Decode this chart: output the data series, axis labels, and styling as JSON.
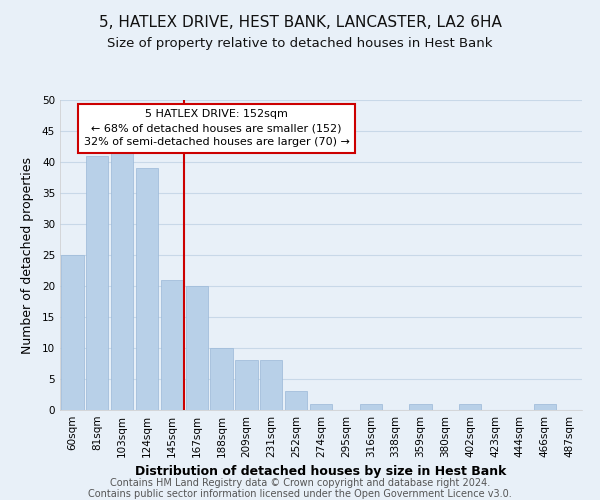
{
  "title": "5, HATLEX DRIVE, HEST BANK, LANCASTER, LA2 6HA",
  "subtitle": "Size of property relative to detached houses in Hest Bank",
  "xlabel": "Distribution of detached houses by size in Hest Bank",
  "ylabel": "Number of detached properties",
  "bar_labels": [
    "60sqm",
    "81sqm",
    "103sqm",
    "124sqm",
    "145sqm",
    "167sqm",
    "188sqm",
    "209sqm",
    "231sqm",
    "252sqm",
    "274sqm",
    "295sqm",
    "316sqm",
    "338sqm",
    "359sqm",
    "380sqm",
    "402sqm",
    "423sqm",
    "444sqm",
    "466sqm",
    "487sqm"
  ],
  "bar_values": [
    25,
    41,
    42,
    39,
    21,
    20,
    10,
    8,
    8,
    3,
    1,
    0,
    1,
    0,
    1,
    0,
    1,
    0,
    0,
    1,
    0
  ],
  "bar_color": "#b8d0e8",
  "bar_edge_color": "#9ab8d8",
  "vline_x_index": 4,
  "vline_color": "#cc0000",
  "annotation_line1": "5 HATLEX DRIVE: 152sqm",
  "annotation_line2": "← 68% of detached houses are smaller (152)",
  "annotation_line3": "32% of semi-detached houses are larger (70) →",
  "annotation_box_color": "#ffffff",
  "annotation_box_edge": "#cc0000",
  "ylim": [
    0,
    50
  ],
  "yticks": [
    0,
    5,
    10,
    15,
    20,
    25,
    30,
    35,
    40,
    45,
    50
  ],
  "grid_color": "#c8d8e8",
  "background_color": "#e8f0f8",
  "footer_line1": "Contains HM Land Registry data © Crown copyright and database right 2024.",
  "footer_line2": "Contains public sector information licensed under the Open Government Licence v3.0.",
  "title_fontsize": 11,
  "subtitle_fontsize": 9.5,
  "xlabel_fontsize": 9,
  "ylabel_fontsize": 9,
  "annotation_fontsize": 8,
  "tick_fontsize": 7.5,
  "footer_fontsize": 7
}
